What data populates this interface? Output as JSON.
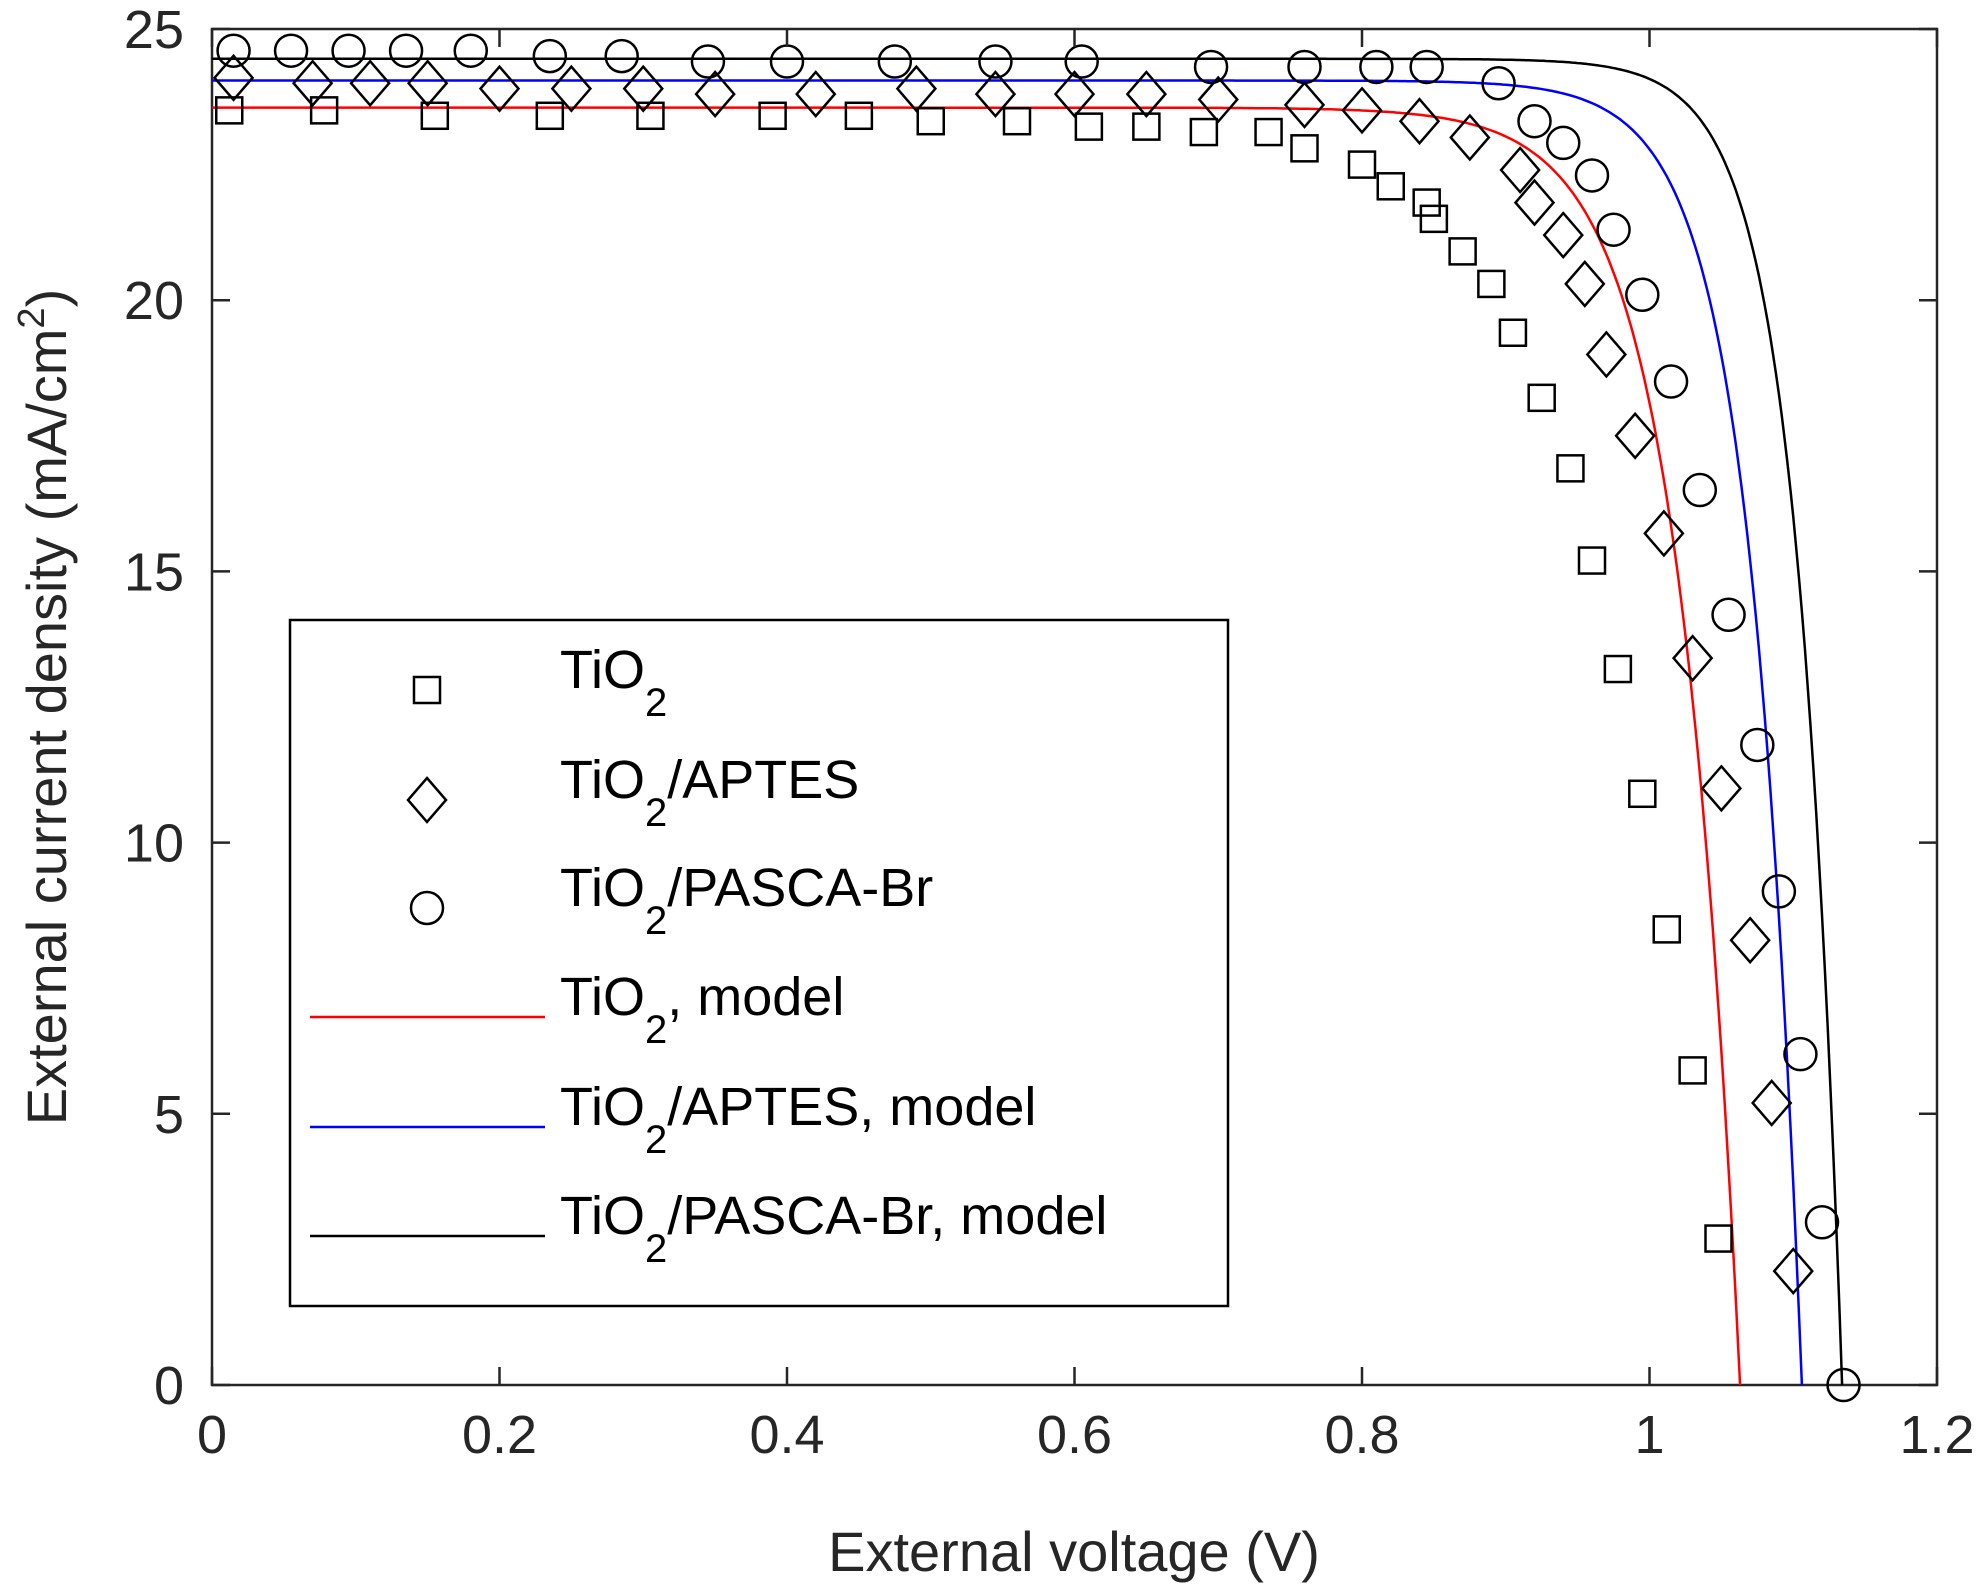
{
  "chart_data": {
    "type": "line",
    "xlabel": "External voltage (V)",
    "ylabel": "External current density (mA/cm²)",
    "ylabel_parts": {
      "main": "External current density (mA/cm",
      "sup": "2",
      "end": ")"
    },
    "xlim": [
      0,
      1.2
    ],
    "ylim": [
      0,
      25
    ],
    "xticks": [
      0,
      0.2,
      0.4,
      0.6,
      0.8,
      1,
      1.2
    ],
    "xtick_labels": [
      "0",
      "0.2",
      "0.4",
      "0.6",
      "0.8",
      "1",
      "1.2"
    ],
    "yticks": [
      0,
      5,
      10,
      15,
      20,
      25
    ],
    "ytick_labels": [
      "0",
      "5",
      "10",
      "15",
      "20",
      "25"
    ],
    "grid": false,
    "legend_position": "lower-left",
    "colors": {
      "axis": "#262626",
      "marker": "#000000",
      "red": "#ff0000",
      "blue": "#0000ff",
      "black": "#000000"
    },
    "series": [
      {
        "name": "TiO2",
        "label_main": "TiO",
        "label_sub": "2",
        "label_tail": "",
        "kind": "markers",
        "marker": "square",
        "x": [
          0.012,
          0.078,
          0.155,
          0.235,
          0.305,
          0.39,
          0.45,
          0.5,
          0.56,
          0.61,
          0.65,
          0.69,
          0.735,
          0.76,
          0.8,
          0.82,
          0.845,
          0.85,
          0.87,
          0.89,
          0.905,
          0.925,
          0.945,
          0.96,
          0.978,
          0.995,
          1.012,
          1.03,
          1.048
        ],
        "y": [
          23.5,
          23.5,
          23.4,
          23.4,
          23.4,
          23.4,
          23.4,
          23.3,
          23.3,
          23.2,
          23.2,
          23.1,
          23.1,
          22.8,
          22.5,
          22.1,
          21.8,
          21.5,
          20.9,
          20.3,
          19.4,
          18.2,
          16.9,
          15.2,
          13.2,
          10.9,
          8.4,
          5.8,
          2.7
        ]
      },
      {
        "name": "TiO2/APTES",
        "label_main": "TiO",
        "label_sub": "2",
        "label_tail": "/APTES",
        "kind": "markers",
        "marker": "diamond",
        "x": [
          0.015,
          0.07,
          0.11,
          0.15,
          0.2,
          0.25,
          0.3,
          0.35,
          0.42,
          0.49,
          0.545,
          0.6,
          0.65,
          0.7,
          0.76,
          0.8,
          0.84,
          0.875,
          0.91,
          0.92,
          0.94,
          0.955,
          0.97,
          0.99,
          1.01,
          1.03,
          1.05,
          1.07,
          1.085,
          1.1
        ],
        "y": [
          24.1,
          24.0,
          24.0,
          24.0,
          23.9,
          23.9,
          23.9,
          23.8,
          23.8,
          23.9,
          23.8,
          23.8,
          23.8,
          23.7,
          23.6,
          23.5,
          23.3,
          23.0,
          22.4,
          21.8,
          21.2,
          20.3,
          19.0,
          17.5,
          15.7,
          13.4,
          11.0,
          8.2,
          5.2,
          2.1
        ]
      },
      {
        "name": "TiO2/PASCA-Br",
        "label_main": "TiO",
        "label_sub": "2",
        "label_tail": "/PASCA-Br",
        "kind": "markers",
        "marker": "circle",
        "x": [
          0.015,
          0.055,
          0.095,
          0.135,
          0.18,
          0.235,
          0.285,
          0.345,
          0.4,
          0.475,
          0.545,
          0.605,
          0.695,
          0.76,
          0.81,
          0.845,
          0.895,
          0.92,
          0.94,
          0.96,
          0.975,
          0.995,
          1.015,
          1.035,
          1.055,
          1.075,
          1.09,
          1.105,
          1.12,
          1.135
        ],
        "y": [
          24.6,
          24.6,
          24.6,
          24.6,
          24.6,
          24.5,
          24.5,
          24.4,
          24.4,
          24.4,
          24.4,
          24.4,
          24.3,
          24.3,
          24.3,
          24.3,
          24.0,
          23.3,
          22.9,
          22.3,
          21.3,
          20.1,
          18.5,
          16.5,
          14.2,
          11.8,
          9.1,
          6.1,
          3.0,
          0.0
        ]
      },
      {
        "name": "TiO2, model",
        "label_main": "TiO",
        "label_sub": "2",
        "label_tail": ", model",
        "kind": "line",
        "color": "#ff0000",
        "jsc": 23.55,
        "voc": 1.063,
        "n": 0.043
      },
      {
        "name": "TiO2/APTES, model",
        "label_main": "TiO",
        "label_sub": "2",
        "label_tail": "/APTES, model",
        "kind": "line",
        "color": "#0000ff",
        "jsc": 24.05,
        "voc": 1.106,
        "n": 0.036
      },
      {
        "name": "TiO2/PASCA-Br, model",
        "label_main": "TiO",
        "label_sub": "2",
        "label_tail": "/PASCA-Br, model",
        "kind": "line",
        "color": "#000000",
        "jsc": 24.45,
        "voc": 1.134,
        "n": 0.032
      }
    ]
  }
}
